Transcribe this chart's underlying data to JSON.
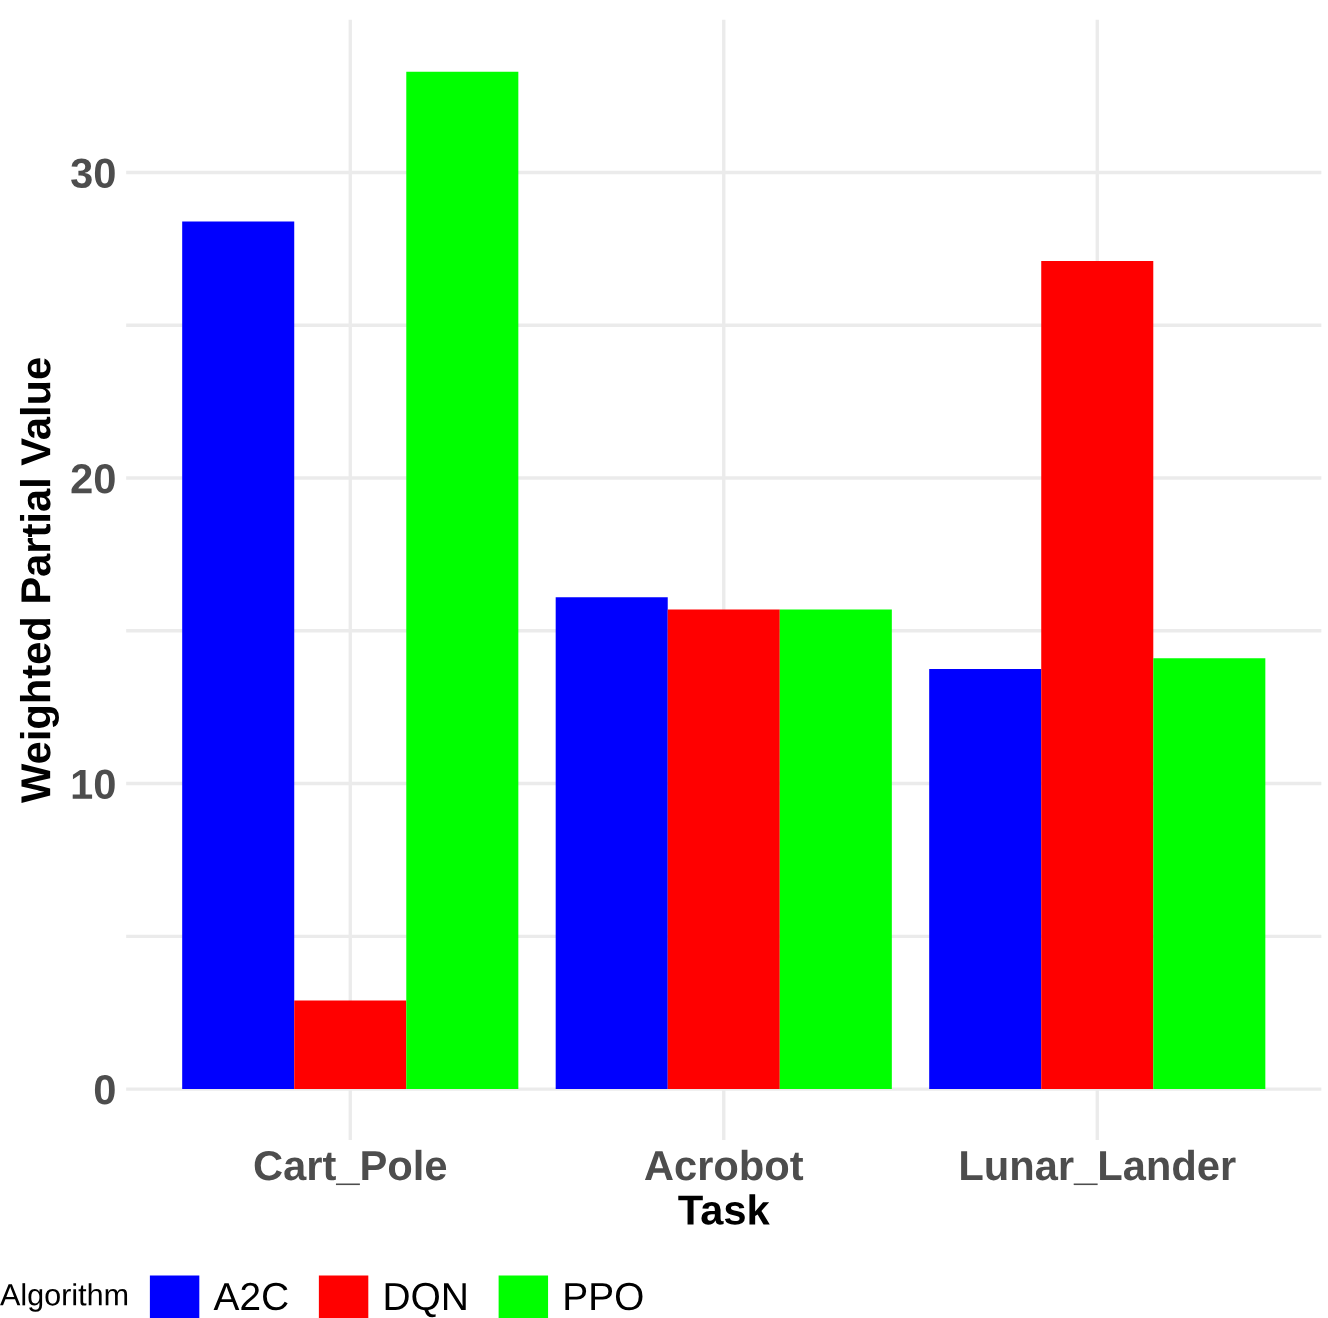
{
  "chart_data": {
    "type": "bar",
    "xlabel": "Task",
    "ylabel": "Weighted Partial Value",
    "legend_title": "Algorithm",
    "categories": [
      "Cart_Pole",
      "Acrobot",
      "Lunar_Lander"
    ],
    "series": [
      {
        "name": "A2C",
        "color": "#0000ff",
        "values": [
          28.4,
          16.1,
          13.75
        ]
      },
      {
        "name": "DQN",
        "color": "#ff0000",
        "values": [
          2.9,
          15.7,
          27.1
        ]
      },
      {
        "name": "PPO",
        "color": "#00ff00",
        "values": [
          33.3,
          15.7,
          14.1
        ]
      }
    ],
    "ylim": [
      -1.67,
      35.0
    ],
    "yticks": [
      0,
      {
        "value": 5,
        "label": null
      },
      10,
      {
        "value": 15,
        "label": null
      },
      20,
      {
        "value": 25,
        "label": null
      },
      30
    ],
    "grid": true,
    "legend": "bottom"
  }
}
